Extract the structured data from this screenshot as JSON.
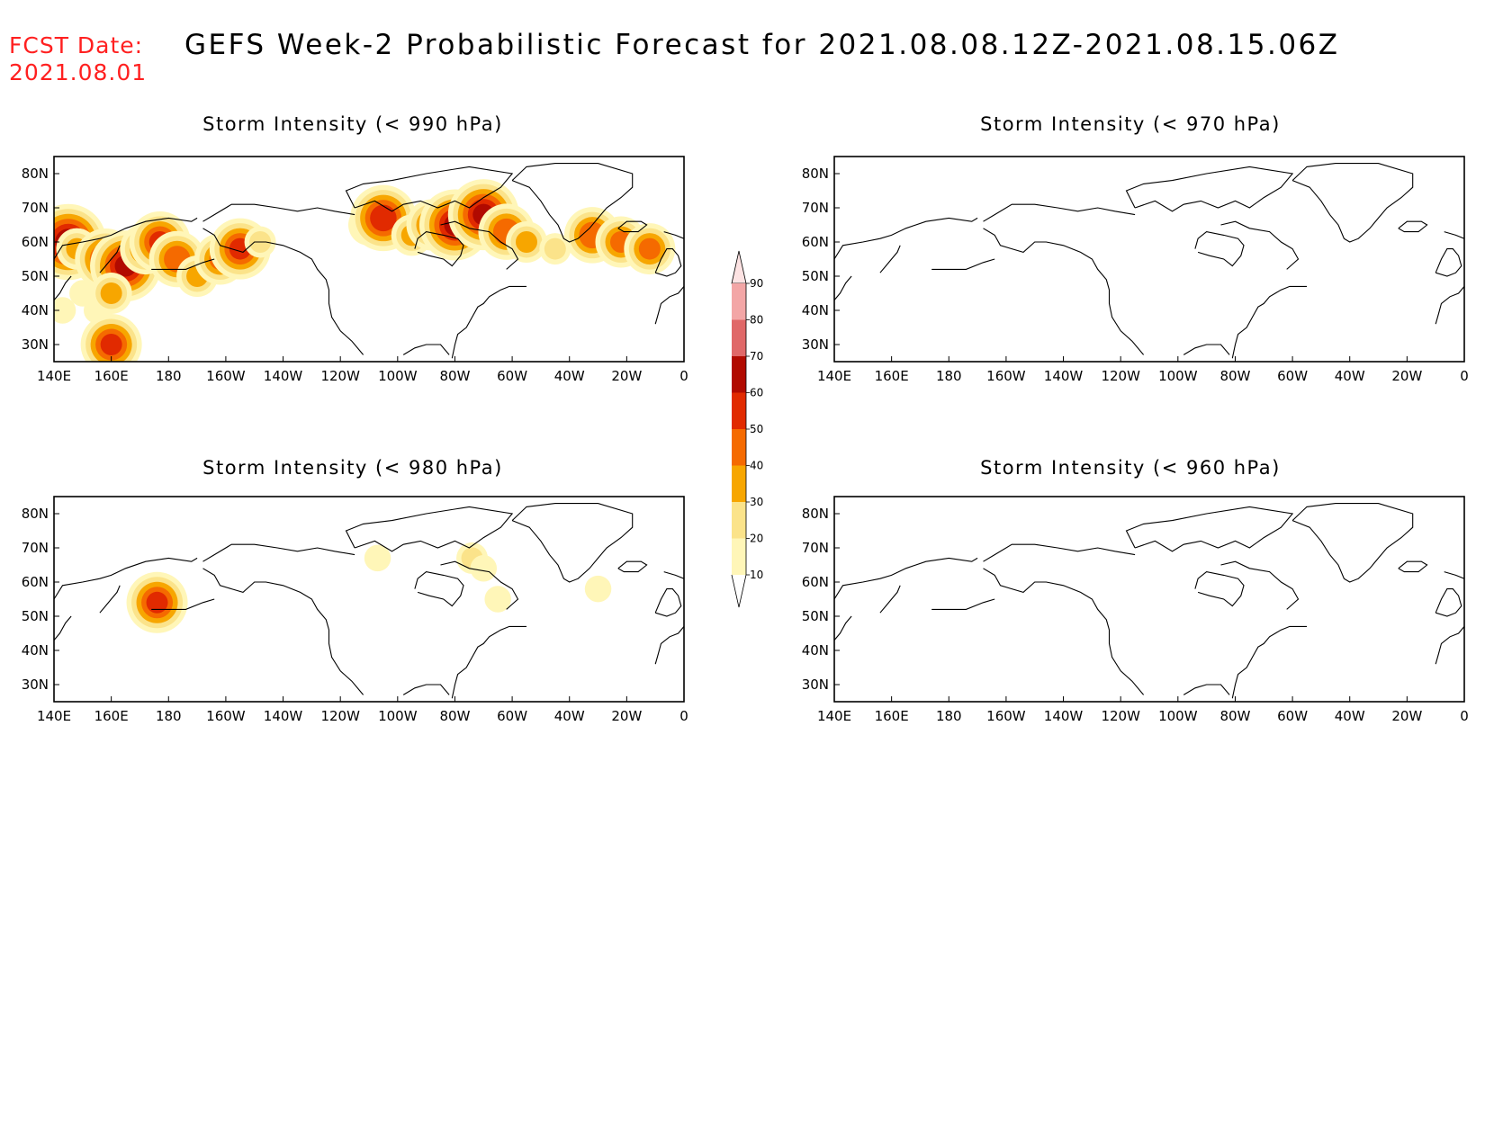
{
  "fcst_label": "FCST Date:",
  "fcst_date": "2021.08.01",
  "title": "GEFS Week-2 Probabilistic Forecast for 2021.08.08.12Z-2021.08.15.06Z",
  "lon_ticks": [
    "140E",
    "160E",
    "180",
    "160W",
    "140W",
    "120W",
    "100W",
    "80W",
    "60W",
    "40W",
    "20W",
    "0"
  ],
  "lat_ticks": [
    "80N",
    "70N",
    "60N",
    "50N",
    "40N",
    "30N"
  ],
  "panels": [
    {
      "id": "p990",
      "title": "Storm Intensity (< 990 hPa)"
    },
    {
      "id": "p970",
      "title": "Storm Intensity (< 970 hPa)"
    },
    {
      "id": "p980",
      "title": "Storm Intensity (< 980 hPa)"
    },
    {
      "id": "p960",
      "title": "Storm Intensity (< 960 hPa)"
    }
  ],
  "colorbar": {
    "levels": [
      "10",
      "20",
      "30",
      "40",
      "50",
      "60",
      "70",
      "80",
      "90"
    ],
    "colors": [
      "#fff6b8",
      "#fbe38a",
      "#f7a600",
      "#f56a00",
      "#e12a00",
      "#b10a00",
      "#e06868",
      "#f3a6a6",
      "#fde3e3"
    ]
  },
  "chart_data": {
    "type": "heatmap",
    "value_units": "probability (%)",
    "lon_range": [
      "140E",
      "0"
    ],
    "lat_range": [
      "25N",
      "85N"
    ],
    "panels": {
      "p990": [
        {
          "lon": 145,
          "lat": 60,
          "p": 65
        },
        {
          "lon": 148,
          "lat": 58,
          "p": 30
        },
        {
          "lon": 150,
          "lat": 45,
          "p": 15
        },
        {
          "lon": 143,
          "lat": 40,
          "p": 15
        },
        {
          "lon": 155,
          "lat": 40,
          "p": 15
        },
        {
          "lon": 158,
          "lat": 55,
          "p": 50
        },
        {
          "lon": 165,
          "lat": 53,
          "p": 60
        },
        {
          "lon": 172,
          "lat": 58,
          "p": 40
        },
        {
          "lon": 177,
          "lat": 60,
          "p": 50
        },
        {
          "lon": 183,
          "lat": 55,
          "p": 45
        },
        {
          "lon": 190,
          "lat": 50,
          "p": 30
        },
        {
          "lon": 198,
          "lat": 55,
          "p": 40
        },
        {
          "lon": 205,
          "lat": 58,
          "p": 50
        },
        {
          "lon": 212,
          "lat": 60,
          "p": 20
        },
        {
          "lon": 160,
          "lat": 30,
          "p": 50
        },
        {
          "lon": 160,
          "lat": 45,
          "p": 30
        },
        {
          "lon": 250,
          "lat": 65,
          "p": 30
        },
        {
          "lon": 255,
          "lat": 67,
          "p": 55
        },
        {
          "lon": 265,
          "lat": 62,
          "p": 30
        },
        {
          "lon": 272,
          "lat": 65,
          "p": 40
        },
        {
          "lon": 280,
          "lat": 65,
          "p": 60
        },
        {
          "lon": 290,
          "lat": 68,
          "p": 60
        },
        {
          "lon": 298,
          "lat": 63,
          "p": 45
        },
        {
          "lon": 305,
          "lat": 60,
          "p": 30
        },
        {
          "lon": 315,
          "lat": 58,
          "p": 20
        },
        {
          "lon": 328,
          "lat": 62,
          "p": 45
        },
        {
          "lon": 338,
          "lat": 60,
          "p": 40
        },
        {
          "lon": 348,
          "lat": 58,
          "p": 40
        }
      ],
      "p980": [
        {
          "lon": 176,
          "lat": 54,
          "p": 50
        },
        {
          "lon": 253,
          "lat": 67,
          "p": 15
        },
        {
          "lon": 286,
          "lat": 67,
          "p": 20
        },
        {
          "lon": 290,
          "lat": 64,
          "p": 15
        },
        {
          "lon": 295,
          "lat": 55,
          "p": 15
        },
        {
          "lon": 330,
          "lat": 58,
          "p": 15
        }
      ],
      "p970": [],
      "p960": []
    }
  }
}
